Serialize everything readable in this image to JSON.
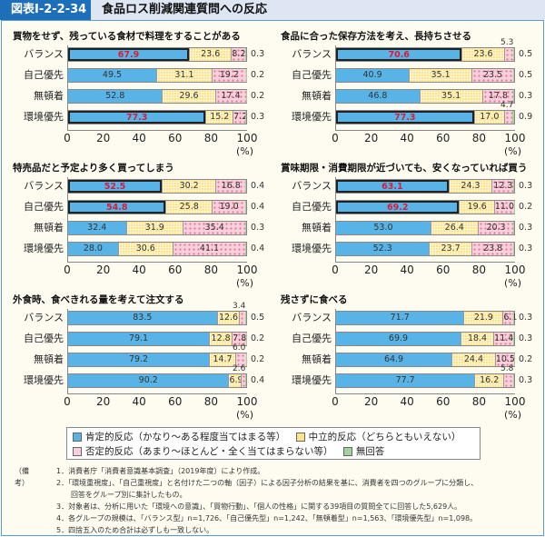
{
  "header": {
    "tag": "図表Ⅰ-2-2-34",
    "title": "食品ロス削減関連質問への反応"
  },
  "chart_data": [
    {
      "type": "bar",
      "stacked": true,
      "orientation": "horizontal",
      "title": "買物をせず、残っている食材で料理をすることがある",
      "categories": [
        "バランス",
        "自己優先",
        "無頓着",
        "環境優先"
      ],
      "series": [
        {
          "name": "肯定的反応",
          "values": [
            67.9,
            49.5,
            52.8,
            77.3
          ]
        },
        {
          "name": "中立的反応",
          "values": [
            23.6,
            31.1,
            29.6,
            15.2
          ]
        },
        {
          "name": "否定的反応",
          "values": [
            8.2,
            19.2,
            17.4,
            7.2
          ]
        },
        {
          "name": "無回答",
          "values": [
            0.3,
            0.2,
            0.2,
            0.3
          ]
        }
      ],
      "highlighted": [
        true,
        false,
        false,
        true
      ],
      "xlim": [
        0,
        100
      ],
      "xticks": [
        0,
        20,
        40,
        60,
        80,
        100
      ],
      "xlabel": "(%)"
    },
    {
      "type": "bar",
      "stacked": true,
      "orientation": "horizontal",
      "title": "食品に合った保存方法を考え、長持ちさせる",
      "categories": [
        "バランス",
        "自己優先",
        "無頓着",
        "環境優先"
      ],
      "series": [
        {
          "name": "肯定的反応",
          "values": [
            70.6,
            40.9,
            46.8,
            77.3
          ]
        },
        {
          "name": "中立的反応",
          "values": [
            23.6,
            35.1,
            35.1,
            17.0
          ]
        },
        {
          "name": "否定的反応",
          "values": [
            5.3,
            23.5,
            17.8,
            4.7
          ]
        },
        {
          "name": "無回答",
          "values": [
            0.5,
            0.5,
            0.3,
            0.9
          ]
        }
      ],
      "highlighted": [
        true,
        false,
        false,
        true
      ],
      "xlim": [
        0,
        100
      ],
      "xticks": [
        0,
        20,
        40,
        60,
        80,
        100
      ],
      "xlabel": "(%)"
    },
    {
      "type": "bar",
      "stacked": true,
      "orientation": "horizontal",
      "title": "特売品だと予定より多く買ってしまう",
      "categories": [
        "バランス",
        "自己優先",
        "無頓着",
        "環境優先"
      ],
      "series": [
        {
          "name": "肯定的反応",
          "values": [
            52.5,
            54.8,
            32.4,
            28.0
          ]
        },
        {
          "name": "中立的反応",
          "values": [
            30.2,
            25.8,
            31.9,
            30.6
          ]
        },
        {
          "name": "否定的反応",
          "values": [
            16.8,
            19.0,
            35.4,
            41.1
          ]
        },
        {
          "name": "無回答",
          "values": [
            0.4,
            0.4,
            0.3,
            0.4
          ]
        }
      ],
      "highlighted": [
        true,
        true,
        false,
        false
      ],
      "xlim": [
        0,
        100
      ],
      "xticks": [
        0,
        20,
        40,
        60,
        80,
        100
      ],
      "xlabel": "(%)"
    },
    {
      "type": "bar",
      "stacked": true,
      "orientation": "horizontal",
      "title": "賞味期限・消費期限が近づいても、安くなっていれば買う",
      "categories": [
        "バランス",
        "自己優先",
        "無頓着",
        "環境優先"
      ],
      "series": [
        {
          "name": "肯定的反応",
          "values": [
            63.1,
            69.2,
            53.0,
            52.3
          ]
        },
        {
          "name": "中立的反応",
          "values": [
            24.3,
            19.6,
            26.4,
            23.7
          ]
        },
        {
          "name": "否定的反応",
          "values": [
            12.3,
            11.0,
            20.3,
            23.8
          ]
        },
        {
          "name": "無回答",
          "values": [
            0.3,
            0.2,
            0.3,
            0.3
          ]
        }
      ],
      "highlighted": [
        true,
        true,
        false,
        false
      ],
      "xlim": [
        0,
        100
      ],
      "xticks": [
        0,
        20,
        40,
        60,
        80,
        100
      ],
      "xlabel": "(%)"
    },
    {
      "type": "bar",
      "stacked": true,
      "orientation": "horizontal",
      "title": "外食時、食べきれる量を考えて注文する",
      "categories": [
        "バランス",
        "自己優先",
        "無頓着",
        "環境優先"
      ],
      "series": [
        {
          "name": "肯定的反応",
          "values": [
            83.5,
            79.1,
            79.2,
            90.2
          ]
        },
        {
          "name": "中立的反応",
          "values": [
            12.6,
            12.8,
            14.7,
            6.9
          ]
        },
        {
          "name": "否定的反応",
          "values": [
            3.4,
            7.8,
            6.0,
            2.6
          ]
        },
        {
          "name": "無回答",
          "values": [
            0.5,
            0.2,
            0.2,
            0.4
          ]
        }
      ],
      "highlighted": [
        false,
        false,
        false,
        false
      ],
      "xlim": [
        0,
        100
      ],
      "xticks": [
        0,
        20,
        40,
        60,
        80,
        100
      ],
      "xlabel": "(%)"
    },
    {
      "type": "bar",
      "stacked": true,
      "orientation": "horizontal",
      "title": "残さずに食べる",
      "categories": [
        "バランス",
        "自己優先",
        "無頓着",
        "環境優先"
      ],
      "series": [
        {
          "name": "肯定的反応",
          "values": [
            71.7,
            69.9,
            64.9,
            77.7
          ]
        },
        {
          "name": "中立的反応",
          "values": [
            21.9,
            18.4,
            24.4,
            16.2
          ]
        },
        {
          "name": "否定的反応",
          "values": [
            6.1,
            11.4,
            10.5,
            5.8
          ]
        },
        {
          "name": "無回答",
          "values": [
            0.3,
            0.3,
            0.2,
            0.3
          ]
        }
      ],
      "highlighted": [
        false,
        false,
        false,
        false
      ],
      "xlim": [
        0,
        100
      ],
      "xticks": [
        0,
        20,
        40,
        60,
        80,
        100
      ],
      "xlabel": "(%)"
    }
  ],
  "axis": {
    "ticks": [
      "0",
      "20",
      "40",
      "60",
      "80",
      "100"
    ],
    "unit": "(%)"
  },
  "legend": [
    {
      "label": "肯定的反応（かなり～ある程度当てはまる等）",
      "color": "#58b4e6"
    },
    {
      "label": "中立的反応（どちらともいえない）",
      "color": "#fde48a"
    },
    {
      "label": "否定的反応（あまり～ほとんど・全く当てはまらない等）",
      "color": "#f9cfdc"
    },
    {
      "label": "無回答",
      "color": "#9fd59a"
    }
  ],
  "notes": {
    "heading": "（備考）",
    "lines": [
      "1．消費者庁「消費者意識基本調査」（2019年度）により作成。",
      "2．「環境重視度」、「自己重視度」と名付けた二つの軸（因子）による因子分析の結果を基に、消費者を四つのグループに分類し、",
      "　　回答をグループ別に集計したもの。",
      "3．対象者は、分析に用いた「環境への意識」、「買物行動」、「個人の性格」に関する39項目の質問全てに回答した5,629人。",
      "4．各グループの規模は、「バランス型」n=1,726、「自己優先型」n=1,242、「無頓着型」n=1,563、「環境優先型」n=1,098。",
      "5．四捨五入のため合計は必ずしも一致しない。"
    ]
  }
}
